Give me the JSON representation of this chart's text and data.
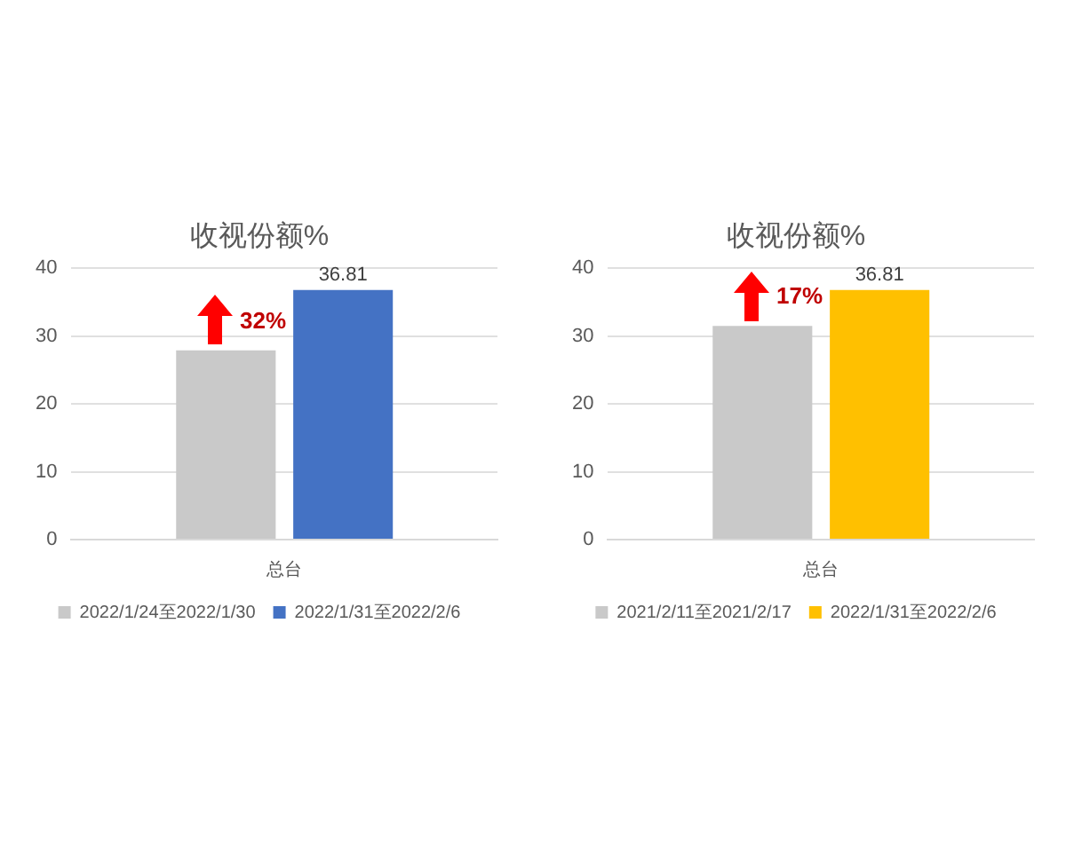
{
  "chart_data": [
    {
      "type": "bar",
      "title": "收视份额%",
      "categories": [
        "总台"
      ],
      "series": [
        {
          "name": "2022/1/24至2022/1/30",
          "color": "#c9c9c9",
          "values": [
            27.9
          ],
          "value_labels": [
            null
          ]
        },
        {
          "name": "2022/1/31至2022/2/6",
          "color": "#4472c4",
          "values": [
            36.81
          ],
          "value_labels": [
            "36.81"
          ]
        }
      ],
      "ylim": [
        0,
        40
      ],
      "yticks": [
        0,
        10,
        20,
        30,
        40
      ],
      "grid": "y",
      "legend": "bottom",
      "annotations": [
        "32%"
      ]
    },
    {
      "type": "bar",
      "title": "收视份额%",
      "categories": [
        "总台"
      ],
      "series": [
        {
          "name": "2021/2/11至2021/2/17",
          "color": "#c9c9c9",
          "values": [
            31.5
          ],
          "value_labels": [
            null
          ]
        },
        {
          "name": "2022/1/31至2022/2/6",
          "color": "#ffc000",
          "values": [
            36.81
          ],
          "value_labels": [
            "36.81"
          ]
        }
      ],
      "ylim": [
        0,
        40
      ],
      "yticks": [
        0,
        10,
        20,
        30,
        40
      ],
      "grid": "y",
      "legend": "bottom",
      "annotations": [
        "17%"
      ]
    }
  ]
}
